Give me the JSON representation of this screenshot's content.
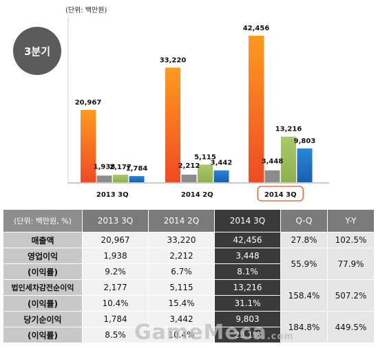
{
  "unit_top": "(단위: 백만원)",
  "quarter_badge": "3분기",
  "chart_data": {
    "type": "bar",
    "categories": [
      "2013 3Q",
      "2014 2Q",
      "2014 3Q"
    ],
    "highlight_category": "2014 3Q",
    "series": [
      {
        "values": [
          20967,
          33220,
          42456
        ],
        "labels": [
          "20,967",
          "33,220",
          "42,456"
        ],
        "color": "#f4651f"
      },
      {
        "values": [
          1938,
          2212,
          3448
        ],
        "labels": [
          "1,938",
          "2,212",
          "3,448"
        ],
        "color": "#8c8c8c"
      },
      {
        "values": [
          2177,
          5115,
          13216
        ],
        "labels": [
          "2,177",
          "5,115",
          "13,216"
        ],
        "color": "#9bbb59"
      },
      {
        "values": [
          1784,
          3442,
          9803
        ],
        "labels": [
          "1,784",
          "3,442",
          "9,803"
        ],
        "color": "#1f6fc6"
      }
    ],
    "ylim": [
      0,
      42456
    ],
    "title": "",
    "xlabel": "",
    "ylabel": "",
    "highlight_color": "#e8541e"
  },
  "table": {
    "headers": [
      "(단위: 백만원, %)",
      "2013 3Q",
      "2014 2Q",
      "2014 3Q",
      "Q-Q",
      "Y-Y"
    ],
    "rows": [
      {
        "label": "매출액",
        "values": [
          "20,967",
          "33,220",
          "42,456"
        ],
        "qq": "27.8%",
        "yy": "102.5%"
      },
      {
        "label": "영업이익",
        "values": [
          "1,938",
          "2,212",
          "3,448"
        ],
        "sub_label": "(이익률)",
        "sub_values": [
          "9.2%",
          "6.7%",
          "8.1%"
        ],
        "qq": "55.9%",
        "yy": "77.9%"
      },
      {
        "label": "법인세차감전순이익",
        "values": [
          "2,177",
          "5,115",
          "13,216"
        ],
        "sub_label": "(이익률)",
        "sub_values": [
          "10.4%",
          "15.4%",
          "31.1%"
        ],
        "qq": "158.4%",
        "yy": "507.2%"
      },
      {
        "label": "당기순이익",
        "values": [
          "1,784",
          "3,442",
          "9,803"
        ],
        "sub_label": "(이익률)",
        "sub_values": [
          "8.5%",
          "10.4%",
          "23.1%"
        ],
        "qq": "184.8%",
        "yy": "449.5%"
      }
    ]
  },
  "watermark": {
    "main": "GameMeca",
    "suffix": ".com"
  }
}
